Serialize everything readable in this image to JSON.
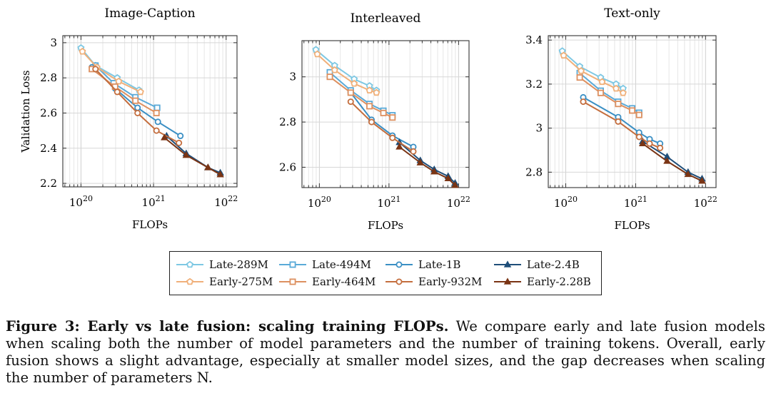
{
  "chart_data": [
    {
      "type": "line",
      "title": "Image-Caption",
      "xlabel": "FLOPs",
      "ylabel": "Validation Loss",
      "xscale": "log",
      "xlim_log10": [
        19.75,
        22.15
      ],
      "xticks": [
        {
          "exp": 20,
          "base": "10",
          "sup": "20"
        },
        {
          "exp": 21,
          "base": "10",
          "sup": "21"
        },
        {
          "exp": 22,
          "base": "10",
          "sup": "22"
        }
      ],
      "ylim": [
        2.18,
        3.04
      ],
      "yticks": [
        {
          "v": 2.2,
          "label": "2.2"
        },
        {
          "v": 2.4,
          "label": "2.4"
        },
        {
          "v": 2.6,
          "label": "2.6"
        },
        {
          "v": 2.8,
          "label": "2.8"
        },
        {
          "v": 3.0,
          "label": "3"
        }
      ],
      "grid": true,
      "series": [
        {
          "name": "Late-289M",
          "x": [
            20.0,
            20.2,
            20.5,
            20.8
          ],
          "y": [
            2.97,
            2.87,
            2.8,
            2.73
          ]
        },
        {
          "name": "Late-494M",
          "x": [
            20.2,
            20.45,
            20.75,
            21.05
          ],
          "y": [
            2.87,
            2.77,
            2.69,
            2.63
          ]
        },
        {
          "name": "Late-1B",
          "x": [
            20.15,
            20.47,
            20.78,
            21.06,
            21.37
          ],
          "y": [
            2.86,
            2.74,
            2.63,
            2.55,
            2.47
          ]
        },
        {
          "name": "Late-2.4B",
          "x": [
            21.18,
            21.45,
            21.75,
            21.92
          ],
          "y": [
            2.47,
            2.37,
            2.29,
            2.26
          ]
        },
        {
          "name": "Early-275M",
          "x": [
            20.02,
            20.22,
            20.52,
            20.82
          ],
          "y": [
            2.95,
            2.86,
            2.78,
            2.72
          ]
        },
        {
          "name": "Early-464M",
          "x": [
            20.15,
            20.47,
            20.75,
            21.04
          ],
          "y": [
            2.85,
            2.75,
            2.67,
            2.6
          ]
        },
        {
          "name": "Early-932M",
          "x": [
            20.2,
            20.5,
            20.78,
            21.04,
            21.35
          ],
          "y": [
            2.85,
            2.72,
            2.6,
            2.5,
            2.43
          ]
        },
        {
          "name": "Early-2.28B",
          "x": [
            21.15,
            21.45,
            21.75,
            21.92
          ],
          "y": [
            2.46,
            2.36,
            2.29,
            2.25
          ]
        }
      ]
    },
    {
      "type": "line",
      "title": "Interleaved",
      "xlabel": "FLOPs",
      "ylabel": "",
      "xscale": "log",
      "xlim_log10": [
        19.75,
        22.15
      ],
      "xticks": [
        {
          "exp": 20,
          "base": "10",
          "sup": "20"
        },
        {
          "exp": 21,
          "base": "10",
          "sup": "21"
        },
        {
          "exp": 22,
          "base": "10",
          "sup": "22"
        }
      ],
      "ylim": [
        2.51,
        3.16
      ],
      "yticks": [
        {
          "v": 2.6,
          "label": "2.6"
        },
        {
          "v": 2.8,
          "label": "2.8"
        },
        {
          "v": 3.0,
          "label": "3"
        }
      ],
      "grid": true,
      "series": [
        {
          "name": "Late-289M",
          "x": [
            19.95,
            20.22,
            20.5,
            20.72,
            20.82
          ],
          "y": [
            3.12,
            3.05,
            2.99,
            2.96,
            2.94
          ]
        },
        {
          "name": "Late-494M",
          "x": [
            20.15,
            20.45,
            20.72,
            20.92,
            21.05
          ],
          "y": [
            3.02,
            2.94,
            2.88,
            2.85,
            2.83
          ]
        },
        {
          "name": "Late-1B",
          "x": [
            20.45,
            20.75,
            21.05,
            21.35
          ],
          "y": [
            2.93,
            2.81,
            2.74,
            2.69
          ]
        },
        {
          "name": "Late-2.4B",
          "x": [
            21.15,
            21.45,
            21.65,
            21.85,
            21.95
          ],
          "y": [
            2.71,
            2.63,
            2.59,
            2.56,
            2.53
          ]
        },
        {
          "name": "Early-275M",
          "x": [
            19.97,
            20.22,
            20.5,
            20.72,
            20.82
          ],
          "y": [
            3.1,
            3.03,
            2.97,
            2.94,
            2.93
          ]
        },
        {
          "name": "Early-464M",
          "x": [
            20.15,
            20.45,
            20.72,
            20.92,
            21.05
          ],
          "y": [
            3.0,
            2.93,
            2.87,
            2.84,
            2.82
          ]
        },
        {
          "name": "Early-932M",
          "x": [
            20.45,
            20.75,
            21.05,
            21.35
          ],
          "y": [
            2.89,
            2.8,
            2.73,
            2.67
          ]
        },
        {
          "name": "Early-2.28B",
          "x": [
            21.15,
            21.45,
            21.65,
            21.85,
            21.95
          ],
          "y": [
            2.69,
            2.62,
            2.58,
            2.55,
            2.52
          ]
        }
      ]
    },
    {
      "type": "line",
      "title": "Text-only",
      "xlabel": "FLOPs",
      "ylabel": "",
      "xscale": "log",
      "xlim_log10": [
        19.75,
        22.15
      ],
      "xticks": [
        {
          "exp": 20,
          "base": "10",
          "sup": "20"
        },
        {
          "exp": 21,
          "base": "10",
          "sup": "21"
        },
        {
          "exp": 22,
          "base": "10",
          "sup": "22"
        }
      ],
      "ylim": [
        2.73,
        3.42
      ],
      "yticks": [
        {
          "v": 2.8,
          "label": "2.8"
        },
        {
          "v": 3.0,
          "label": "3"
        },
        {
          "v": 3.2,
          "label": "3.2"
        },
        {
          "v": 3.4,
          "label": "3.4"
        }
      ],
      "grid": true,
      "series": [
        {
          "name": "Late-289M",
          "x": [
            19.95,
            20.2,
            20.5,
            20.72,
            20.82
          ],
          "y": [
            3.35,
            3.28,
            3.23,
            3.2,
            3.18
          ]
        },
        {
          "name": "Late-494M",
          "x": [
            20.2,
            20.5,
            20.75,
            20.95,
            21.05
          ],
          "y": [
            3.25,
            3.17,
            3.12,
            3.09,
            3.07
          ]
        },
        {
          "name": "Late-1B",
          "x": [
            20.25,
            20.75,
            21.05,
            21.2,
            21.35
          ],
          "y": [
            3.14,
            3.05,
            2.98,
            2.95,
            2.93
          ]
        },
        {
          "name": "Late-2.4B",
          "x": [
            21.1,
            21.45,
            21.75,
            21.95
          ],
          "y": [
            2.94,
            2.87,
            2.8,
            2.77
          ]
        },
        {
          "name": "Early-275M",
          "x": [
            19.97,
            20.22,
            20.52,
            20.72,
            20.82
          ],
          "y": [
            3.33,
            3.26,
            3.21,
            3.18,
            3.16
          ]
        },
        {
          "name": "Early-464M",
          "x": [
            20.2,
            20.5,
            20.75,
            20.95,
            21.05
          ],
          "y": [
            3.23,
            3.16,
            3.11,
            3.08,
            3.06
          ]
        },
        {
          "name": "Early-932M",
          "x": [
            20.25,
            20.75,
            21.05,
            21.2,
            21.35
          ],
          "y": [
            3.12,
            3.03,
            2.96,
            2.93,
            2.91
          ]
        },
        {
          "name": "Early-2.28B",
          "x": [
            21.1,
            21.45,
            21.75,
            21.95
          ],
          "y": [
            2.93,
            2.85,
            2.79,
            2.76
          ]
        }
      ]
    }
  ],
  "legend": {
    "items": [
      {
        "name": "Late-289M",
        "color": "#7ec8e3",
        "marker": "pentagon"
      },
      {
        "name": "Late-494M",
        "color": "#5aaad8",
        "marker": "square"
      },
      {
        "name": "Late-1B",
        "color": "#3a8fc4",
        "marker": "circle"
      },
      {
        "name": "Late-2.4B",
        "color": "#1f4e79",
        "marker": "triangle"
      },
      {
        "name": "Early-275M",
        "color": "#f0b07a",
        "marker": "pentagon"
      },
      {
        "name": "Early-464M",
        "color": "#dd9060",
        "marker": "square"
      },
      {
        "name": "Early-932M",
        "color": "#c46e3e",
        "marker": "circle"
      },
      {
        "name": "Early-2.28B",
        "color": "#7a3414",
        "marker": "triangle"
      }
    ]
  },
  "caption": {
    "label": "Figure 3: Early vs late fusion: scaling training FLOPs.",
    "text": " We compare early and late fusion models when scaling both the number of model parameters and the number of training tokens. Overall, early fusion shows a slight advantage, especially at smaller model sizes, and the gap decreases when scaling the number of parameters N."
  }
}
